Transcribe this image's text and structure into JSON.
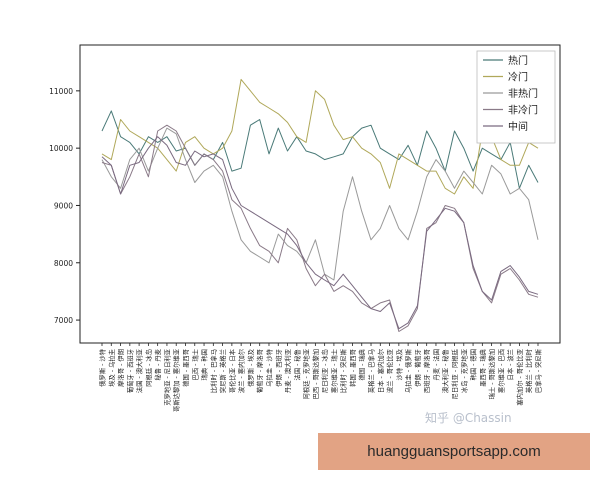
{
  "chart_data": {
    "type": "line",
    "title": "",
    "xlabel": "",
    "ylabel": "",
    "ylim": [
      6600,
      11800
    ],
    "yticks": [
      7000,
      8000,
      9000,
      10000,
      11000
    ],
    "grid": false,
    "legend_position": "top-right",
    "categories": [
      "俄罗斯 - 沙特",
      "埃及 - 乌拉圭",
      "摩洛哥 - 伊朗",
      "葡萄牙 - 西班牙",
      "法国 - 澳大利亚",
      "阿根廷 - 冰岛",
      "秘鲁 - 丹麦",
      "克罗地亚 - 尼日利亚",
      "哥斯达黎加 - 塞尔维亚",
      "德国 - 墨西哥",
      "巴西 - 瑞士",
      "瑞典 - 韩国",
      "比利时 - 巴拿马",
      "突尼斯 - 英格兰",
      "哥伦比亚 - 日本",
      "波兰 - 塞内加尔",
      "俄罗斯 - 埃及",
      "葡萄牙 - 摩洛哥",
      "乌拉圭 - 沙特",
      "伊朗 - 西班牙",
      "丹麦 - 澳大利亚",
      "法国 - 秘鲁",
      "阿根廷 - 克罗地亚",
      "巴西 - 哥斯达黎加",
      "尼日利亚 - 冰岛",
      "塞尔维亚 - 瑞士",
      "比利时 - 突尼斯",
      "韩国 - 墨西哥",
      "德国 - 瑞典",
      "英格兰 - 巴拿马",
      "日本 - 塞内加尔",
      "波兰 - 哥伦比亚",
      "沙特 - 埃及",
      "乌拉圭 - 俄罗斯",
      "伊朗 - 葡萄牙",
      "西班牙 - 摩洛哥",
      "丹麦 - 法国",
      "澳大利亚 - 秘鲁",
      "尼日利亚 - 阿根廷",
      "冰岛 - 克罗地亚",
      "韩国 - 德国",
      "墨西哥 - 瑞典",
      "瑞士 - 哥斯达黎加",
      "塞尔维亚 - 巴西",
      "日本 - 波兰",
      "塞内加尔 - 哥伦比亚",
      "英格兰 - 比利时",
      "巴拿马 - 突尼斯"
    ],
    "series": [
      {
        "name": "热门",
        "color": "#4a7a78",
        "values": [
          10300,
          10650,
          10200,
          10100,
          9900,
          10200,
          10100,
          10200,
          9950,
          10000,
          9700,
          9900,
          9800,
          10100,
          9600,
          9650,
          10400,
          10500,
          9900,
          10350,
          9950,
          10200,
          9950,
          9900,
          9800,
          9850,
          9900,
          10200,
          10350,
          10400,
          10000,
          9900,
          9800,
          10050,
          9700,
          10300,
          10000,
          9600,
          10300,
          10000,
          9600,
          10000,
          9900,
          9800,
          10100,
          9300,
          9700,
          9400
        ]
      },
      {
        "name": "冷门",
        "color": "#b0a85a",
        "values": [
          9900,
          9800,
          10500,
          10300,
          10200,
          10100,
          10000,
          9800,
          9600,
          10100,
          10200,
          10000,
          9900,
          10000,
          10300,
          11200,
          11000,
          10800,
          10700,
          10600,
          10450,
          10200,
          10100,
          11000,
          10850,
          10400,
          10150,
          10200,
          10000,
          9900,
          9750,
          9300,
          9900,
          9800,
          9700,
          9600,
          9600,
          9300,
          9200,
          9500,
          9300,
          10300,
          10200,
          9800,
          9700,
          9700,
          10100,
          10000
        ]
      },
      {
        "name": "非热门",
        "color": "#9a9a9a",
        "values": [
          9800,
          9500,
          9300,
          9800,
          10000,
          9600,
          10000,
          10350,
          10250,
          9800,
          9400,
          9600,
          9700,
          9500,
          8900,
          8400,
          8200,
          8100,
          8000,
          8500,
          8300,
          8200,
          8000,
          8400,
          7800,
          7700,
          8900,
          9500,
          8900,
          8400,
          8600,
          9000,
          8600,
          8400,
          8900,
          9500,
          9800,
          9600,
          9300,
          9600,
          9400,
          9200,
          9700,
          9550,
          9200,
          9300,
          9100,
          8400
        ]
      },
      {
        "name": "非冷门",
        "color": "#8a7a88",
        "values": [
          9750,
          9700,
          9200,
          9500,
          9900,
          9500,
          10300,
          10400,
          10300,
          10000,
          9700,
          9900,
          9800,
          9600,
          9100,
          8950,
          8600,
          8300,
          8200,
          8000,
          8600,
          8400,
          7900,
          7600,
          7800,
          7500,
          7600,
          7500,
          7300,
          7200,
          7300,
          7350,
          6800,
          6900,
          7200,
          8600,
          8700,
          9000,
          8950,
          8700,
          7900,
          7500,
          7300,
          7800,
          7900,
          7700,
          7450,
          7400
        ]
      },
      {
        "name": "中间",
        "color": "#7a6a80",
        "values": [
          9850,
          9700,
          9200,
          9700,
          9750,
          10000,
          10200,
          10050,
          9750,
          9700,
          9950,
          9850,
          9900,
          9800,
          9300,
          9000,
          8900,
          8800,
          8700,
          8600,
          8500,
          8300,
          8000,
          7800,
          7700,
          7600,
          7800,
          7600,
          7400,
          7200,
          7150,
          7300,
          6850,
          6950,
          7250,
          8550,
          8750,
          8950,
          8900,
          8700,
          7950,
          7500,
          7350,
          7850,
          7950,
          7750,
          7500,
          7450
        ]
      }
    ]
  },
  "watermark": "知乎 @Chassin",
  "banner": {
    "text": "huangguansportsapp.com",
    "color": "#e2a384"
  }
}
